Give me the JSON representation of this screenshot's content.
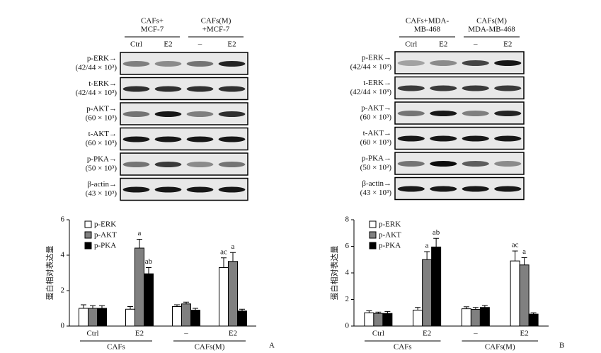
{
  "blots": [
    {
      "groups": [
        [
          "CAFs+",
          "MCF-7"
        ],
        [
          "CAFs(M)",
          "+MCF-7"
        ]
      ],
      "lanes": [
        "Ctrl",
        "E2",
        "–",
        "E2"
      ],
      "rows": [
        [
          "p-ERK→",
          "(42/44 × 10³)"
        ],
        [
          "t-ERK→",
          "(42/44 × 10³)"
        ],
        [
          "p-AKT→",
          "(60 × 10³)"
        ],
        [
          "t-AKT→",
          "(60 × 10³)"
        ],
        [
          "p-PKA→",
          "(50 × 10³)"
        ],
        [
          "β-actin→",
          "(43 × 10³)"
        ]
      ]
    },
    {
      "groups": [
        [
          "CAFs+MDA-",
          "MB-468"
        ],
        [
          "CAFs(M)",
          "MDA-MB-468"
        ]
      ],
      "lanes": [
        "Ctrl",
        "E2",
        "–",
        "E2"
      ],
      "rows": [
        [
          "p-ERK→",
          "(42/44 × 10³)"
        ],
        [
          "t-ERK→",
          "(42/44 × 10³)"
        ],
        [
          "p-AKT→",
          "(60 × 10³)"
        ],
        [
          "t-AKT→",
          "(60 × 10³)"
        ],
        [
          "p-PKA→",
          "(50 × 10³)"
        ],
        [
          "β-actin→",
          "(43 × 10³)"
        ]
      ]
    }
  ],
  "chart_data": [
    {
      "type": "bar",
      "panel": "A",
      "ylabel": "蛋白相对表达量",
      "categories": [
        "Ctrl",
        "E2",
        "–",
        "E2"
      ],
      "groups": [
        "CAFs",
        "CAFs(M)"
      ],
      "ylim": [
        0,
        6
      ],
      "yticks": [
        0,
        2,
        4,
        6
      ],
      "series": [
        {
          "name": "p-ERK",
          "color": "#ffffff",
          "values": [
            1.0,
            0.95,
            1.1,
            3.3
          ],
          "errors": [
            0.2,
            0.15,
            0.1,
            0.55
          ],
          "labels": [
            null,
            null,
            null,
            "ac"
          ]
        },
        {
          "name": "p-AKT",
          "color": "#808080",
          "values": [
            1.0,
            4.4,
            1.25,
            3.65
          ],
          "errors": [
            0.15,
            0.5,
            0.1,
            0.5
          ],
          "labels": [
            null,
            "a",
            null,
            "a"
          ]
        },
        {
          "name": "p-PKA",
          "color": "#000000",
          "values": [
            1.0,
            2.95,
            0.9,
            0.85
          ],
          "errors": [
            0.15,
            0.35,
            0.1,
            0.1
          ],
          "labels": [
            null,
            "ab",
            null,
            null
          ]
        }
      ]
    },
    {
      "type": "bar",
      "panel": "B",
      "ylabel": "蛋白相对表达量",
      "categories": [
        "Ctrl",
        "E2",
        "–",
        "E2"
      ],
      "groups": [
        "CAFs",
        "CAFs(M)"
      ],
      "ylim": [
        0,
        8
      ],
      "yticks": [
        0,
        2,
        4,
        6,
        8
      ],
      "series": [
        {
          "name": "p-ERK",
          "color": "#ffffff",
          "values": [
            1.0,
            1.2,
            1.3,
            4.9
          ],
          "errors": [
            0.15,
            0.2,
            0.15,
            0.75
          ],
          "labels": [
            null,
            null,
            null,
            "ac"
          ]
        },
        {
          "name": "p-AKT",
          "color": "#808080",
          "values": [
            0.95,
            5.0,
            1.25,
            4.6
          ],
          "errors": [
            0.1,
            0.6,
            0.15,
            0.55
          ],
          "labels": [
            null,
            "a",
            null,
            "a"
          ]
        },
        {
          "name": "p-PKA",
          "color": "#000000",
          "values": [
            0.95,
            5.95,
            1.4,
            0.9
          ],
          "errors": [
            0.15,
            0.65,
            0.15,
            0.1
          ],
          "labels": [
            null,
            "ab",
            null,
            null
          ]
        }
      ]
    }
  ]
}
